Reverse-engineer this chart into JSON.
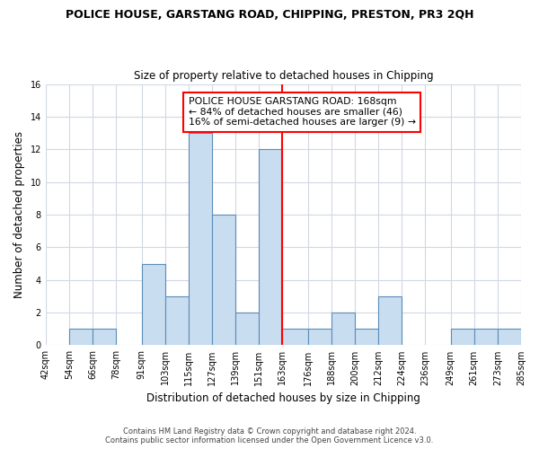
{
  "title": "POLICE HOUSE, GARSTANG ROAD, CHIPPING, PRESTON, PR3 2QH",
  "subtitle": "Size of property relative to detached houses in Chipping",
  "xlabel": "Distribution of detached houses by size in Chipping",
  "ylabel": "Number of detached properties",
  "bar_color": "#c9ddf0",
  "bar_edge_color": "#5b8db8",
  "bar_left_edges": [
    42,
    54,
    66,
    78,
    91,
    103,
    115,
    127,
    139,
    151,
    163,
    176,
    188,
    200,
    212,
    224,
    236,
    249,
    261,
    273
  ],
  "bar_widths": [
    12,
    12,
    12,
    13,
    12,
    12,
    12,
    12,
    12,
    12,
    13,
    12,
    12,
    12,
    12,
    12,
    13,
    12,
    12,
    12
  ],
  "bar_heights": [
    0,
    1,
    1,
    0,
    5,
    3,
    13,
    8,
    2,
    12,
    1,
    1,
    2,
    1,
    3,
    0,
    0,
    1,
    1,
    1
  ],
  "tick_labels": [
    "42sqm",
    "54sqm",
    "66sqm",
    "78sqm",
    "91sqm",
    "103sqm",
    "115sqm",
    "127sqm",
    "139sqm",
    "151sqm",
    "163sqm",
    "176sqm",
    "188sqm",
    "200sqm",
    "212sqm",
    "224sqm",
    "236sqm",
    "249sqm",
    "261sqm",
    "273sqm",
    "285sqm"
  ],
  "ylim": [
    0,
    16
  ],
  "yticks": [
    0,
    2,
    4,
    6,
    8,
    10,
    12,
    14,
    16
  ],
  "red_line_x": 163,
  "annotation_text": "POLICE HOUSE GARSTANG ROAD: 168sqm\n← 84% of detached houses are smaller (46)\n16% of semi-detached houses are larger (9) →",
  "footer_line1": "Contains HM Land Registry data © Crown copyright and database right 2024.",
  "footer_line2": "Contains public sector information licensed under the Open Government Licence v3.0.",
  "background_color": "#ffffff",
  "grid_color": "#d0d8e4"
}
